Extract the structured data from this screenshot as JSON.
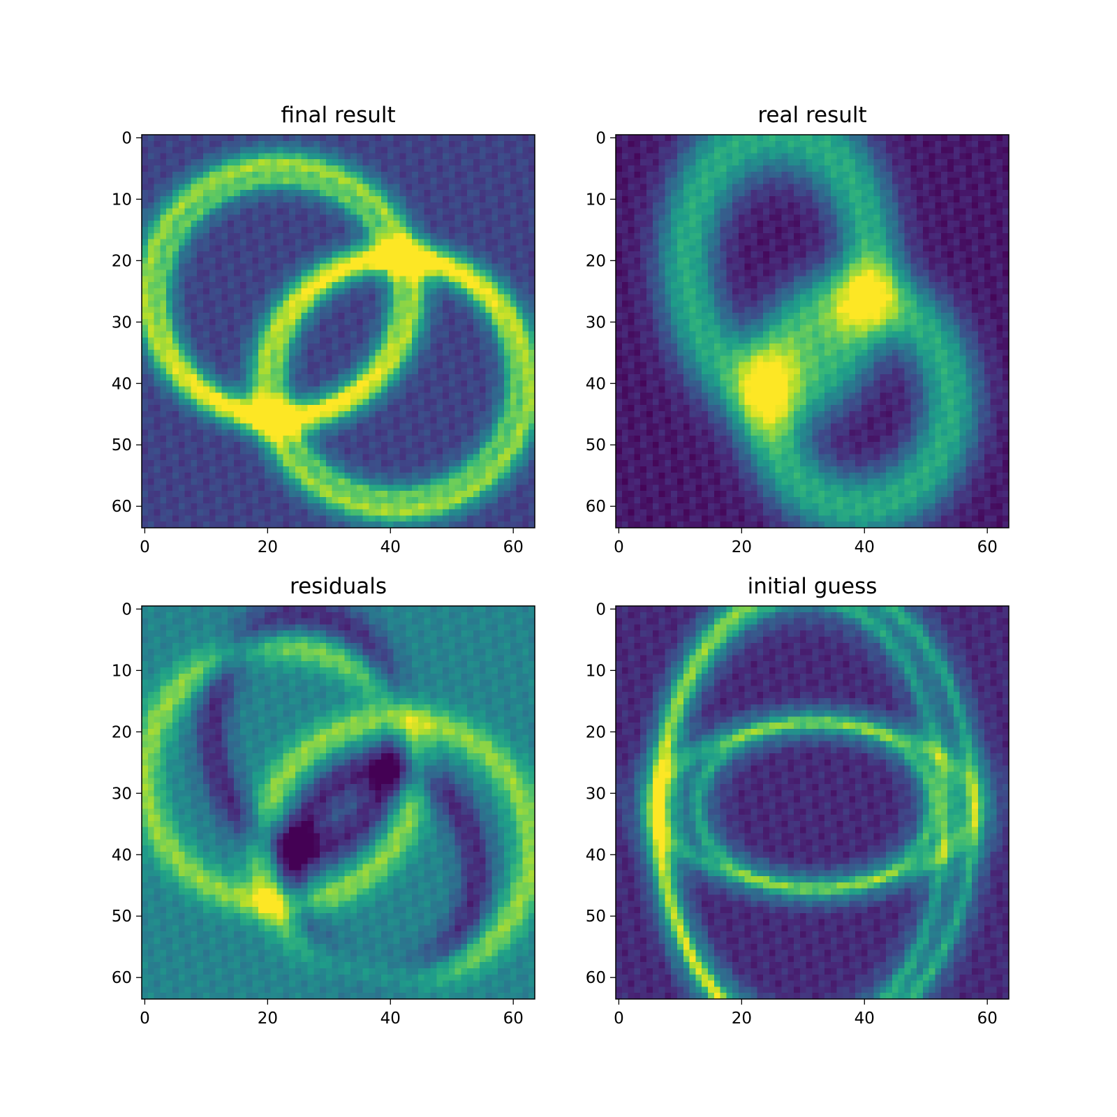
{
  "colormap": "viridis",
  "colors": {
    "viridis": [
      "#440154",
      "#482878",
      "#3e4989",
      "#31688e",
      "#26828e",
      "#1f9e89",
      "#35b779",
      "#6ece58",
      "#b5de2b",
      "#fde725"
    ]
  },
  "chart_data": [
    {
      "type": "heatmap",
      "title": "final result",
      "grid_size": 64,
      "x_ticks": [
        "0",
        "20",
        "40",
        "60"
      ],
      "y_ticks": [
        "0",
        "10",
        "20",
        "30",
        "40",
        "50",
        "60"
      ],
      "background_level": 0.2,
      "rings": [
        {
          "cx": 22,
          "cy": 25,
          "rx": 22,
          "ry": 21,
          "w": 1.2,
          "amp": 0.55
        },
        {
          "cx": 22,
          "cy": 26,
          "rx": 19,
          "ry": 19,
          "w": 1.0,
          "amp": 0.4
        },
        {
          "cx": 41,
          "cy": 40,
          "rx": 22,
          "ry": 21,
          "w": 1.2,
          "amp": 0.55
        },
        {
          "cx": 41,
          "cy": 39,
          "rx": 19,
          "ry": 19,
          "w": 1.0,
          "amp": 0.4
        }
      ]
    },
    {
      "type": "heatmap",
      "title": "real result",
      "grid_size": 64,
      "x_ticks": [
        "0",
        "20",
        "40",
        "60"
      ],
      "y_ticks": [
        "0",
        "10",
        "20",
        "30",
        "40",
        "50",
        "60"
      ],
      "background_level": 0.07,
      "rings": [
        {
          "cx": 26,
          "cy": 20,
          "rx": 15,
          "ry": 21,
          "w": 3.2,
          "amp": 0.45
        },
        {
          "cx": 39,
          "cy": 43,
          "rx": 15,
          "ry": 17,
          "w": 3.2,
          "amp": 0.45
        }
      ]
    },
    {
      "type": "heatmap",
      "title": "residuals",
      "grid_size": 64,
      "x_ticks": [
        "0",
        "20",
        "40",
        "60"
      ],
      "y_ticks": [
        "0",
        "10",
        "20",
        "30",
        "40",
        "50",
        "60"
      ],
      "background_level": 0.45,
      "rings": [
        {
          "cx": 22,
          "cy": 27,
          "rx": 22,
          "ry": 21,
          "w": 1.5,
          "amp": 0.35
        },
        {
          "cx": 41,
          "cy": 39,
          "rx": 22,
          "ry": 21,
          "w": 1.5,
          "amp": 0.35
        },
        {
          "cx": 26,
          "cy": 20,
          "rx": 15,
          "ry": 19,
          "w": 1.6,
          "amp": -0.3
        },
        {
          "cx": 39,
          "cy": 43,
          "rx": 15,
          "ry": 17,
          "w": 1.6,
          "amp": -0.3
        }
      ]
    },
    {
      "type": "heatmap",
      "title": "initial guess",
      "grid_size": 64,
      "x_ticks": [
        "0",
        "20",
        "40",
        "60"
      ],
      "y_ticks": [
        "0",
        "10",
        "20",
        "30",
        "40",
        "50",
        "60"
      ],
      "background_level": 0.12,
      "rings": [
        {
          "cx": 32,
          "cy": 32,
          "rx": 19,
          "ry": 14,
          "w": 0.9,
          "amp": 0.4
        },
        {
          "cx": 32,
          "cy": 33,
          "rx": 26,
          "ry": 38,
          "w": 0.9,
          "amp": 0.45
        },
        {
          "cx": 30,
          "cy": 34,
          "rx": 23,
          "ry": 36,
          "w": 0.9,
          "amp": 0.4
        },
        {
          "cx": 32,
          "cy": 32,
          "rx": 26,
          "ry": 13,
          "w": 0.9,
          "amp": 0.35
        }
      ]
    }
  ]
}
